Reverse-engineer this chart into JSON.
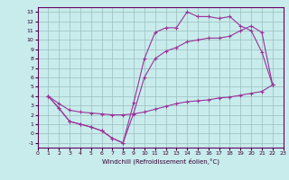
{
  "xlabel": "Windchill (Refroidissement éolien,°C)",
  "bg_color": "#c8ecec",
  "grid_color": "#9bbcbc",
  "line_color": "#993399",
  "xlim": [
    0,
    23
  ],
  "ylim": [
    -1.5,
    13.5
  ],
  "xticks": [
    0,
    1,
    2,
    3,
    4,
    5,
    6,
    7,
    8,
    9,
    10,
    11,
    12,
    13,
    14,
    15,
    16,
    17,
    18,
    19,
    20,
    21,
    22,
    23
  ],
  "yticks": [
    -1,
    0,
    1,
    2,
    3,
    4,
    5,
    6,
    7,
    8,
    9,
    10,
    11,
    12,
    13
  ],
  "curve1_x": [
    1,
    2,
    3,
    4,
    5,
    6,
    7,
    8,
    9,
    10,
    11,
    12,
    13,
    14,
    15,
    16,
    17,
    18,
    19,
    20,
    21,
    22
  ],
  "curve1_y": [
    4,
    2.7,
    1.3,
    1.0,
    0.7,
    0.3,
    -0.5,
    -1.0,
    3.3,
    8.0,
    10.8,
    11.3,
    11.3,
    13.0,
    12.5,
    12.5,
    12.3,
    12.5,
    11.5,
    11.0,
    8.7,
    5.2
  ],
  "curve2_x": [
    1,
    2,
    3,
    4,
    5,
    6,
    7,
    8,
    9,
    10,
    11,
    12,
    13,
    14,
    15,
    16,
    17,
    18,
    19,
    20,
    21,
    22
  ],
  "curve2_y": [
    4,
    2.7,
    1.3,
    1.0,
    0.7,
    0.3,
    -0.5,
    -1.0,
    2.2,
    6.0,
    8.0,
    8.8,
    9.2,
    9.8,
    10.0,
    10.2,
    10.2,
    10.4,
    11.0,
    11.5,
    10.8,
    5.2
  ],
  "curve3_x": [
    1,
    2,
    3,
    4,
    5,
    6,
    7,
    8,
    9,
    10,
    11,
    12,
    13,
    14,
    15,
    16,
    17,
    18,
    19,
    20,
    21,
    22
  ],
  "curve3_y": [
    4,
    3.2,
    2.5,
    2.3,
    2.2,
    2.1,
    2.0,
    2.0,
    2.1,
    2.3,
    2.6,
    2.9,
    3.2,
    3.4,
    3.5,
    3.6,
    3.8,
    3.9,
    4.1,
    4.3,
    4.5,
    5.2
  ]
}
